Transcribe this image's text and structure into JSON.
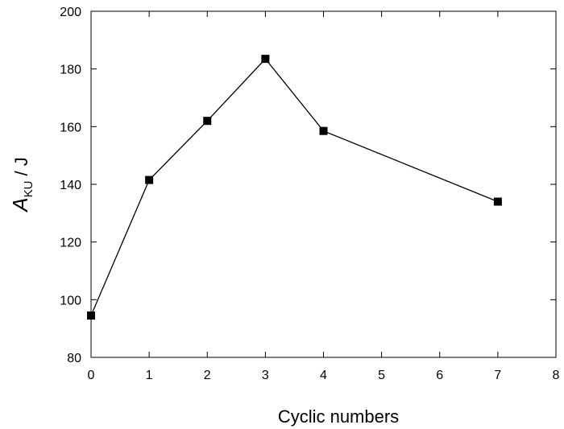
{
  "chart_data": {
    "type": "line",
    "x": [
      0,
      1,
      2,
      3,
      4,
      7
    ],
    "series": [
      {
        "values": [
          94.5,
          141.5,
          162,
          183.5,
          158.5,
          134
        ]
      }
    ],
    "xlabel": "Cyclic numbers",
    "ylabel": {
      "symbol": "A",
      "subscript": "KU",
      "unit": " / J"
    },
    "xlim": [
      0,
      8
    ],
    "ylim": [
      80,
      200
    ],
    "xticks": [
      "0",
      "1",
      "2",
      "3",
      "4",
      "5",
      "6",
      "7",
      "8"
    ],
    "yticks": [
      "80",
      "100",
      "120",
      "140",
      "160",
      "180",
      "200"
    ],
    "grid": false,
    "marker": "square",
    "colors": {
      "line": "#000000",
      "marker": "#000000",
      "axis": "#000000"
    }
  }
}
